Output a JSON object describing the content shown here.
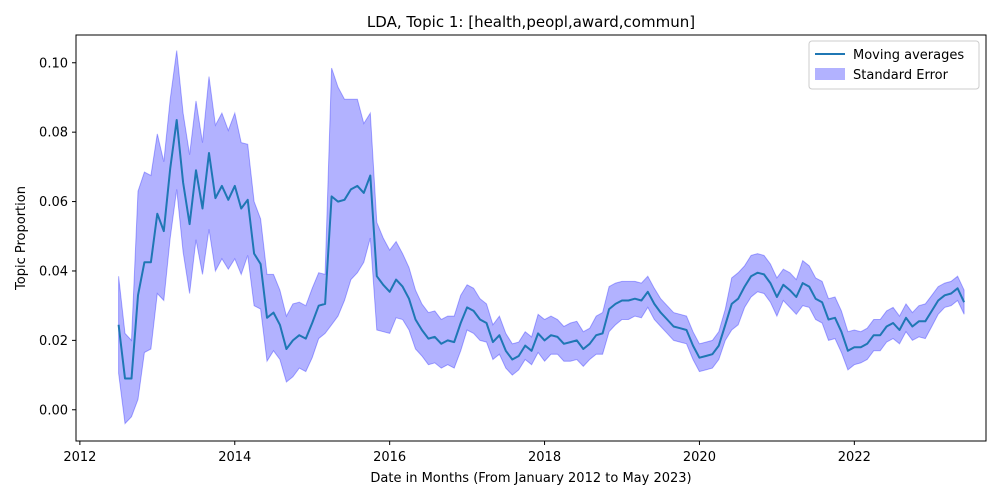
{
  "chart_data": {
    "type": "line",
    "title": "LDA, Topic 1: [health,peopl,award,commun]",
    "xlabel": "Date in Months (From January 2012 to May 2023)",
    "ylabel": "Topic Proportion",
    "xlim": [
      2011.95,
      2023.7
    ],
    "ylim": [
      -0.009,
      0.108
    ],
    "x_ticks": [
      2012,
      2014,
      2016,
      2018,
      2020,
      2022
    ],
    "y_ticks": [
      0.0,
      0.02,
      0.04,
      0.06,
      0.08,
      0.1
    ],
    "y_tick_labels": [
      "0.00",
      "0.02",
      "0.04",
      "0.06",
      "0.08",
      "0.10"
    ],
    "x_tick_labels": [
      "2012",
      "2014",
      "2016",
      "2018",
      "2020",
      "2022"
    ],
    "grid": false,
    "legend_position": "top-right",
    "x_start": "2012-07",
    "x_step": "1 month",
    "series": [
      {
        "name": "Moving averages",
        "color": "#1f77b4",
        "mean": [
          0.0245,
          0.009,
          0.009,
          0.033,
          0.0425,
          0.0425,
          0.0565,
          0.0515,
          0.0695,
          0.0835,
          0.0655,
          0.0535,
          0.069,
          0.058,
          0.074,
          0.061,
          0.0645,
          0.0605,
          0.0645,
          0.058,
          0.0605,
          0.045,
          0.042,
          0.0265,
          0.028,
          0.0245,
          0.0175,
          0.02,
          0.0215,
          0.0205,
          0.025,
          0.03,
          0.0305,
          0.0615,
          0.06,
          0.0605,
          0.0635,
          0.0645,
          0.0625,
          0.0675,
          0.0385,
          0.036,
          0.034,
          0.0375,
          0.0355,
          0.032,
          0.026,
          0.023,
          0.0205,
          0.021,
          0.019,
          0.02,
          0.0195,
          0.025,
          0.0295,
          0.0285,
          0.026,
          0.025,
          0.0195,
          0.0215,
          0.017,
          0.0145,
          0.0155,
          0.0185,
          0.017,
          0.022,
          0.02,
          0.0215,
          0.021,
          0.019,
          0.0195,
          0.02,
          0.0175,
          0.019,
          0.0215,
          0.022,
          0.029,
          0.0305,
          0.0315,
          0.0315,
          0.032,
          0.0315,
          0.034,
          0.0305,
          0.028,
          0.026,
          0.024,
          0.0235,
          0.023,
          0.0185,
          0.015,
          0.0155,
          0.016,
          0.0185,
          0.0245,
          0.0305,
          0.032,
          0.0355,
          0.0385,
          0.0395,
          0.039,
          0.0365,
          0.0325,
          0.036,
          0.0345,
          0.0325,
          0.0365,
          0.0355,
          0.032,
          0.031,
          0.026,
          0.0265,
          0.0225,
          0.017,
          0.018,
          0.018,
          0.019,
          0.0215,
          0.0215,
          0.024,
          0.025,
          0.023,
          0.0265,
          0.024,
          0.0255,
          0.0255,
          0.0285,
          0.0315,
          0.033,
          0.0335,
          0.035,
          0.031
        ],
        "sem": [
          0.014,
          0.013,
          0.011,
          0.03,
          0.026,
          0.025,
          0.023,
          0.02,
          0.02,
          0.02,
          0.02,
          0.02,
          0.02,
          0.019,
          0.022,
          0.021,
          0.021,
          0.02,
          0.021,
          0.019,
          0.016,
          0.015,
          0.013,
          0.0125,
          0.011,
          0.01,
          0.0095,
          0.0105,
          0.0095,
          0.0095,
          0.01,
          0.0095,
          0.0085,
          0.037,
          0.033,
          0.029,
          0.026,
          0.025,
          0.02,
          0.018,
          0.0155,
          0.0135,
          0.012,
          0.011,
          0.0095,
          0.009,
          0.0085,
          0.0075,
          0.0075,
          0.0075,
          0.007,
          0.007,
          0.0075,
          0.008,
          0.0065,
          0.0065,
          0.006,
          0.0055,
          0.005,
          0.0055,
          0.005,
          0.0045,
          0.004,
          0.004,
          0.004,
          0.0055,
          0.006,
          0.0055,
          0.005,
          0.005,
          0.0055,
          0.0055,
          0.005,
          0.0045,
          0.0055,
          0.006,
          0.0065,
          0.006,
          0.0055,
          0.0055,
          0.005,
          0.005,
          0.0045,
          0.0045,
          0.004,
          0.004,
          0.004,
          0.004,
          0.004,
          0.004,
          0.004,
          0.004,
          0.004,
          0.004,
          0.0045,
          0.0075,
          0.0075,
          0.006,
          0.006,
          0.0055,
          0.0055,
          0.0055,
          0.0055,
          0.0045,
          0.005,
          0.005,
          0.0065,
          0.006,
          0.006,
          0.006,
          0.006,
          0.006,
          0.006,
          0.0055,
          0.005,
          0.0045,
          0.0045,
          0.0045,
          0.0045,
          0.0045,
          0.0045,
          0.004,
          0.004,
          0.004,
          0.0045,
          0.005,
          0.0045,
          0.004,
          0.0035,
          0.0035,
          0.0035,
          0.0035
        ]
      },
      {
        "name": "Standard Error",
        "color": "#0000ff",
        "fill_opacity": 0.3
      }
    ]
  }
}
